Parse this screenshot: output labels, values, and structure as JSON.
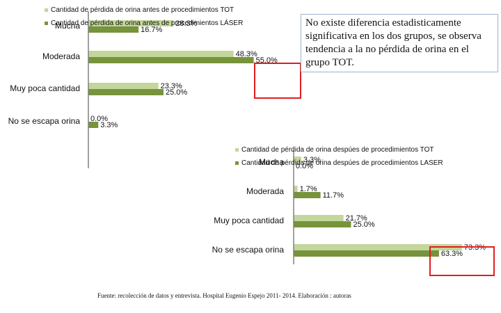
{
  "colors": {
    "light": "#c3d69b",
    "dark": "#77933c",
    "axis": "#808080",
    "highlight": "#e01e1e"
  },
  "chart_data": [
    {
      "type": "bar",
      "orientation": "horizontal",
      "categories": [
        "Mucha",
        "Moderada",
        "Muy poca cantidad",
        "No se escapa orina"
      ],
      "series": [
        {
          "name": "Cantidad de pérdida de orina antes de procedimientos TOT",
          "values": [
            28.3,
            48.3,
            23.3,
            0.0
          ],
          "labels": [
            "28.3%",
            "48.3%",
            "23.3%",
            "0.0%"
          ]
        },
        {
          "name": "Cantidad de pérdida de orina antes de procedimientos LÁSER",
          "values": [
            16.7,
            55.0,
            25.0,
            3.3
          ],
          "labels": [
            "16.7%",
            "55.0%",
            "25.0%",
            "3.3%"
          ]
        }
      ],
      "legend": "top"
    },
    {
      "type": "bar",
      "orientation": "horizontal",
      "categories": [
        "Mucha",
        "Moderada",
        "Muy poca cantidad",
        "No se escapa orina"
      ],
      "series": [
        {
          "name": "Cantidad de pérdida de orina despúes de procedimientos TOT",
          "values": [
            3.3,
            1.7,
            21.7,
            73.3
          ],
          "labels": [
            "3.3%",
            "1.7%",
            "21.7%",
            "73.3%"
          ]
        },
        {
          "name": "Cantidad de pérdida de orina despúes de procedimientos LASER",
          "values": [
            0.0,
            11.7,
            25.0,
            63.3
          ],
          "labels": [
            "0.0%",
            "11.7%",
            "25.0%",
            "63.3%"
          ]
        }
      ],
      "legend": "top"
    }
  ],
  "note": "No existe diferencia estadisticamente significativa en los dos grupos, se observa tendencia a la no pérdida de orina en el grupo TOT.",
  "source": "Fuente: recolección de datos y entrevista. Hospital Eugenio Espejo 2011- 2014. Elaboración : autoras"
}
